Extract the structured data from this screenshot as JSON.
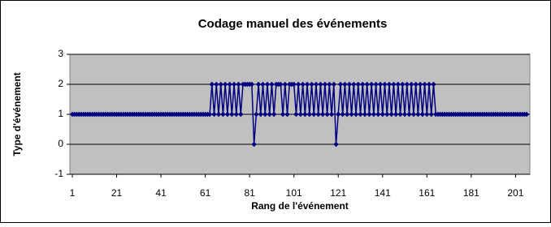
{
  "chart_data": {
    "type": "line",
    "title": "Codage manuel des événements",
    "x_label": "Rang de l'événement",
    "y_label": "Type d'événement",
    "x": [
      1,
      2,
      3,
      4,
      5,
      6,
      7,
      8,
      9,
      10,
      11,
      12,
      13,
      14,
      15,
      16,
      17,
      18,
      19,
      20,
      21,
      22,
      23,
      24,
      25,
      26,
      27,
      28,
      29,
      30,
      31,
      32,
      33,
      34,
      35,
      36,
      37,
      38,
      39,
      40,
      41,
      42,
      43,
      44,
      45,
      46,
      47,
      48,
      49,
      50,
      51,
      52,
      53,
      54,
      55,
      56,
      57,
      58,
      59,
      60,
      61,
      62,
      63,
      64,
      65,
      66,
      67,
      68,
      69,
      70,
      71,
      72,
      73,
      74,
      75,
      76,
      77,
      78,
      79,
      80,
      81,
      82,
      83,
      84,
      85,
      86,
      87,
      88,
      89,
      90,
      91,
      92,
      93,
      94,
      95,
      96,
      97,
      98,
      99,
      100,
      101,
      102,
      103,
      104,
      105,
      106,
      107,
      108,
      109,
      110,
      111,
      112,
      113,
      114,
      115,
      116,
      117,
      118,
      119,
      120,
      121,
      122,
      123,
      124,
      125,
      126,
      127,
      128,
      129,
      130,
      131,
      132,
      133,
      134,
      135,
      136,
      137,
      138,
      139,
      140,
      141,
      142,
      143,
      144,
      145,
      146,
      147,
      148,
      149,
      150,
      151,
      152,
      153,
      154,
      155,
      156,
      157,
      158,
      159,
      160,
      161,
      162,
      163,
      164,
      165,
      166,
      167,
      168,
      169,
      170,
      171,
      172,
      173,
      174,
      175,
      176,
      177,
      178,
      179,
      180,
      181,
      182,
      183,
      184,
      185,
      186,
      187,
      188,
      189,
      190,
      191,
      192,
      193,
      194,
      195,
      196,
      197,
      198,
      199,
      200,
      201,
      202,
      203,
      204,
      205,
      206
    ],
    "series": [
      {
        "color": "#000080",
        "values": [
          1,
          1,
          1,
          1,
          1,
          1,
          1,
          1,
          1,
          1,
          1,
          1,
          1,
          1,
          1,
          1,
          1,
          1,
          1,
          1,
          1,
          1,
          1,
          1,
          1,
          1,
          1,
          1,
          1,
          1,
          1,
          1,
          1,
          1,
          1,
          1,
          1,
          1,
          1,
          1,
          1,
          1,
          1,
          1,
          1,
          1,
          1,
          1,
          1,
          1,
          1,
          1,
          1,
          1,
          1,
          1,
          1,
          1,
          1,
          1,
          1,
          1,
          1,
          2,
          1,
          2,
          1,
          2,
          1,
          2,
          1,
          2,
          1,
          2,
          1,
          2,
          1,
          2,
          2,
          2,
          2,
          2,
          0,
          1,
          2,
          1,
          2,
          1,
          2,
          1,
          2,
          1,
          2,
          2,
          2,
          1,
          2,
          1,
          2,
          2,
          2,
          1,
          2,
          1,
          2,
          1,
          2,
          1,
          2,
          1,
          2,
          1,
          2,
          1,
          2,
          1,
          2,
          1,
          2,
          0,
          1,
          2,
          1,
          2,
          1,
          2,
          1,
          2,
          1,
          2,
          1,
          2,
          1,
          2,
          1,
          2,
          1,
          2,
          1,
          2,
          1,
          2,
          1,
          2,
          1,
          2,
          1,
          2,
          1,
          2,
          1,
          2,
          1,
          2,
          1,
          2,
          1,
          2,
          1,
          2,
          1,
          2,
          1,
          2,
          1,
          1,
          1,
          1,
          1,
          1,
          1,
          1,
          1,
          1,
          1,
          1,
          1,
          1,
          1,
          1,
          1,
          1,
          1,
          1,
          1,
          1,
          1,
          1,
          1,
          1,
          1,
          1,
          1,
          1,
          1,
          1,
          1,
          1,
          1,
          1,
          1,
          1,
          1,
          1,
          1,
          1
        ]
      }
    ],
    "xlim": [
      1,
      206
    ],
    "xticks": [
      1,
      21,
      41,
      61,
      81,
      101,
      121,
      141,
      161,
      181,
      201
    ],
    "ylim": [
      -1,
      3
    ],
    "yticks": [
      -1,
      0,
      1,
      2,
      3
    ],
    "grid": true
  }
}
